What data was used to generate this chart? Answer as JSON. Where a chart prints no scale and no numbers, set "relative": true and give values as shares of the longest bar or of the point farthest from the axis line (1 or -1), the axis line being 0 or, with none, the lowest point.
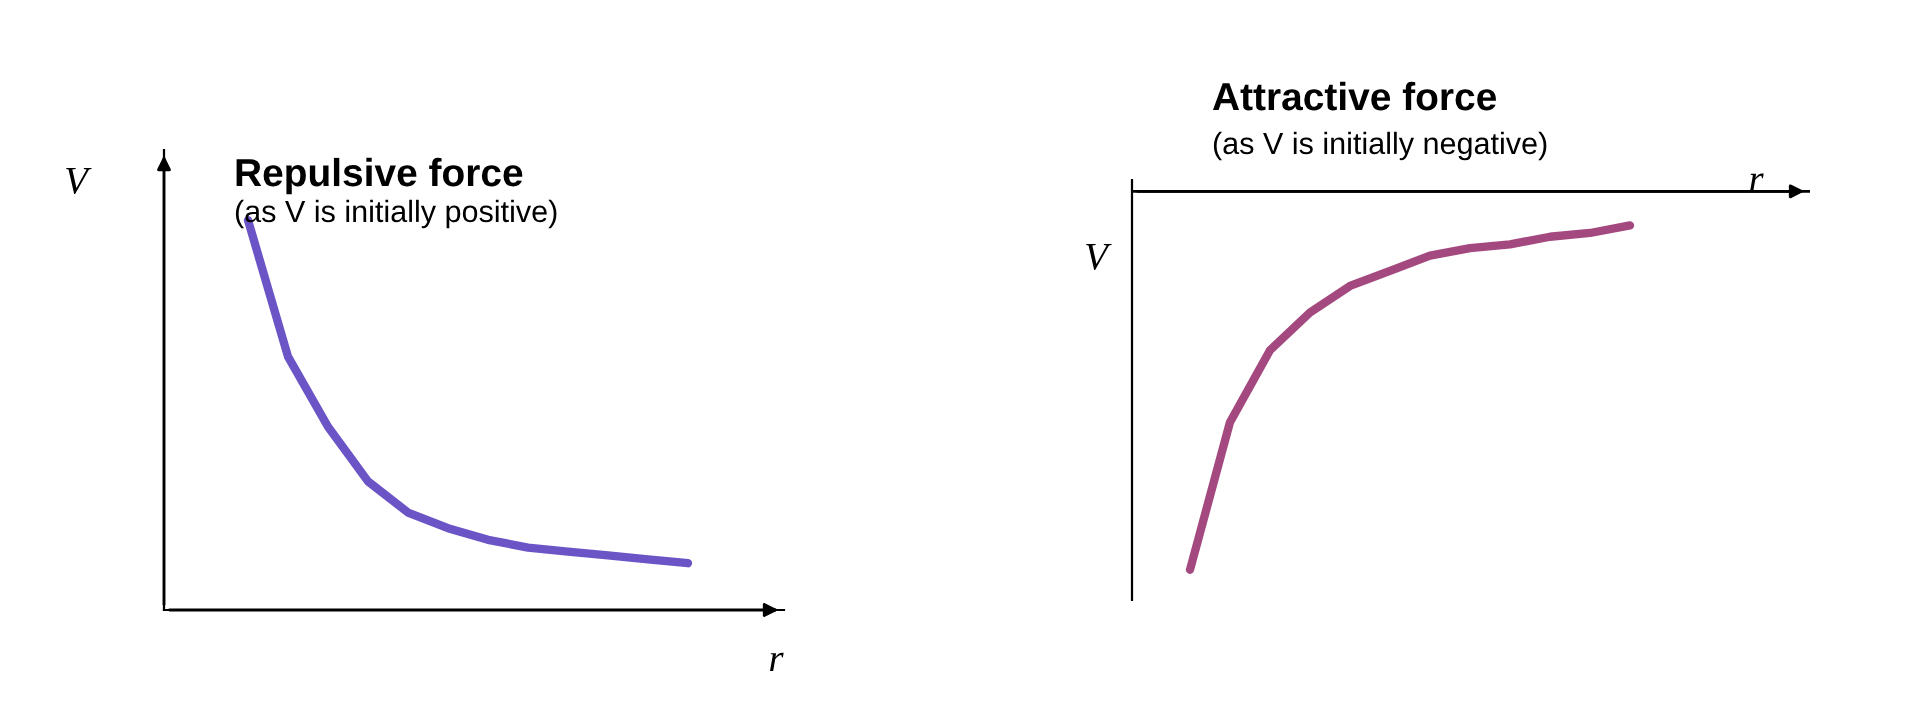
{
  "chart_data": [
    {
      "type": "line",
      "title": "Repulsive force",
      "subtitle": "(as V is initially positive)",
      "xlabel": "r",
      "ylabel": "V",
      "relative": true,
      "legend": false,
      "categories": [
        null,
        null,
        null,
        null,
        null,
        null,
        null,
        null,
        null,
        null,
        null,
        null
      ],
      "series": [
        {
          "color": "#6b54c6",
          "values": [
            1,
            0.65,
            0.47,
            0.33,
            0.25,
            0.21,
            0.18,
            0.16,
            0.15,
            0.14,
            0.13,
            0.12
          ]
        }
      ]
    },
    {
      "type": "line",
      "title": "Attractive force",
      "subtitle": "(as V is initially negative)",
      "xlabel": "r",
      "ylabel": "V",
      "relative": true,
      "legend": false,
      "categories": [
        null,
        null,
        null,
        null,
        null,
        null,
        null,
        null,
        null,
        null,
        null,
        null
      ],
      "series": [
        {
          "color": "#a4497f",
          "values": [
            -1,
            -0.61,
            -0.42,
            -0.32,
            -0.25,
            -0.21,
            -0.17,
            -0.15,
            -0.14,
            -0.12,
            -0.11,
            -0.09
          ]
        }
      ]
    }
  ]
}
